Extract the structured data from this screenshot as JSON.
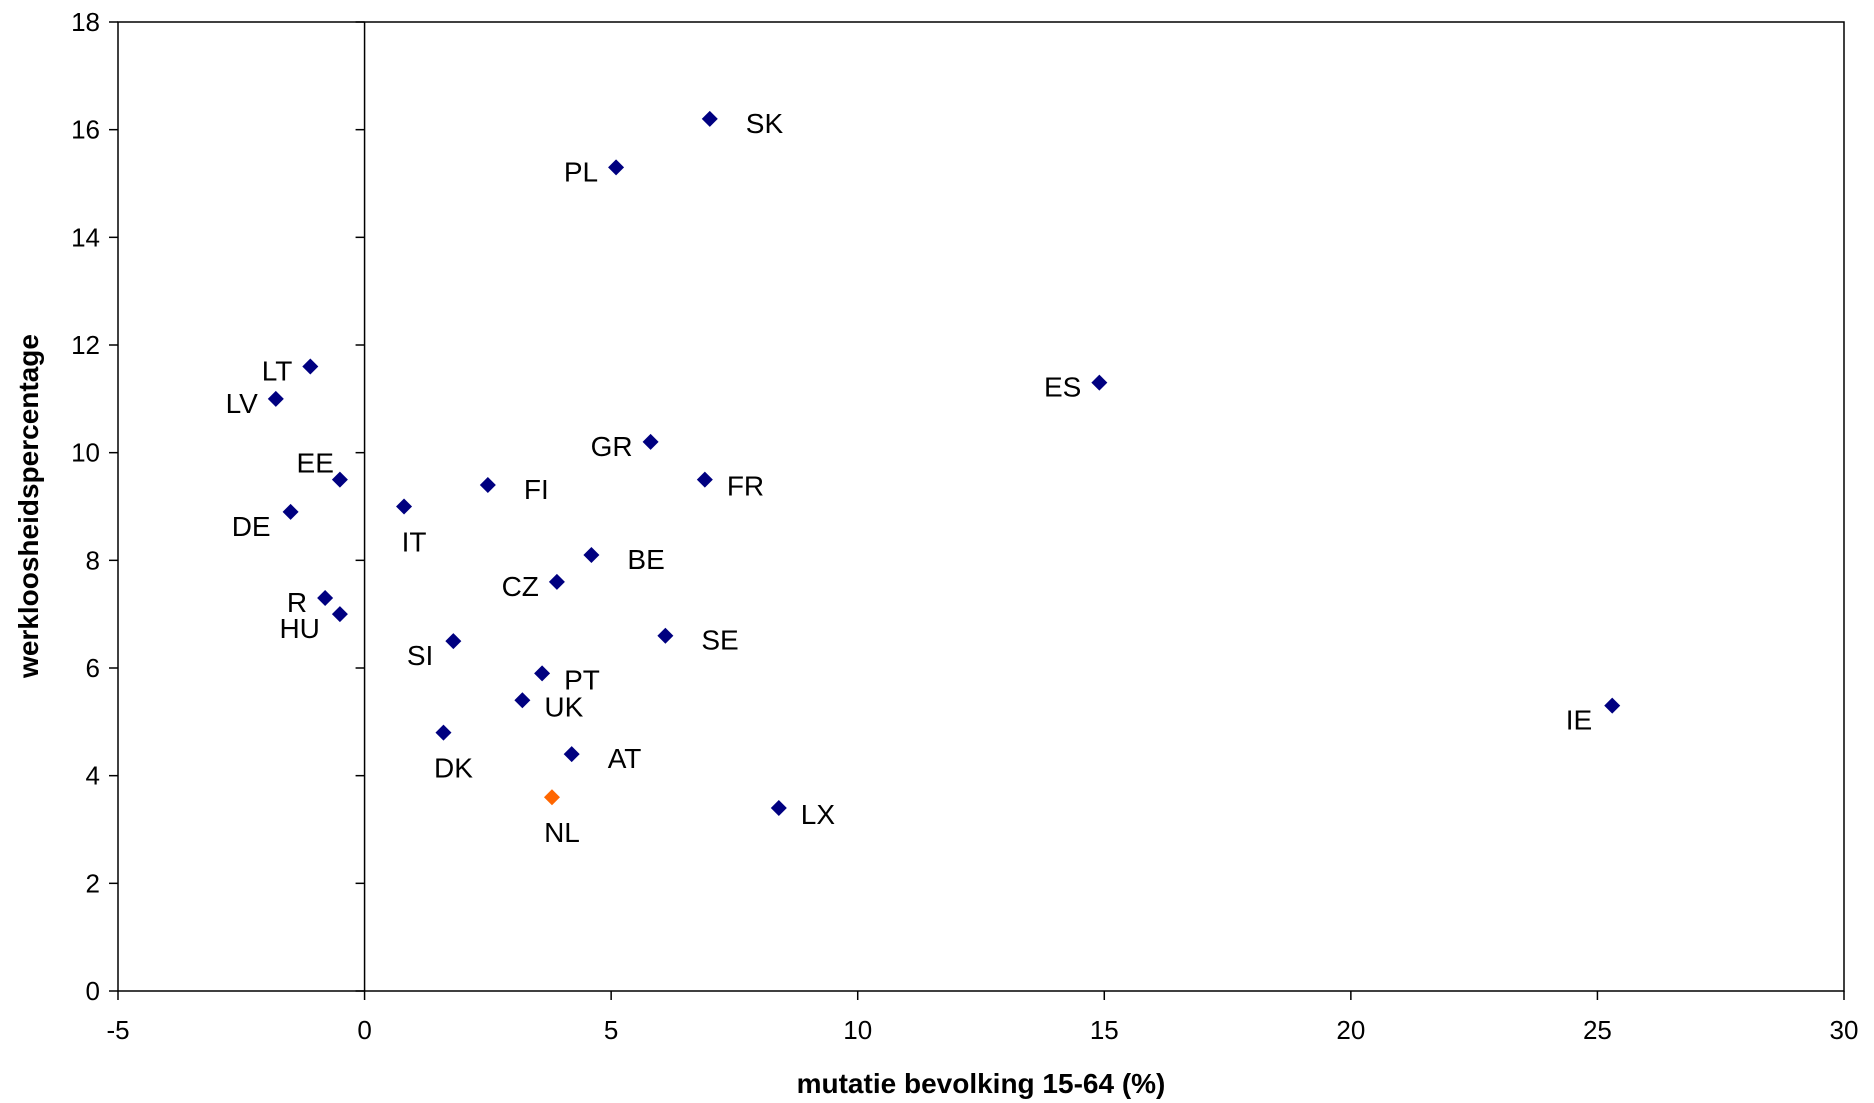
{
  "chart_data": {
    "type": "scatter",
    "title": "",
    "xlabel": "mutatie bevolking 15-64 (%)",
    "ylabel": "werkloosheidspercentage",
    "xlim": [
      -5,
      30
    ],
    "ylim": [
      0,
      18
    ],
    "xticks": [
      -5,
      0,
      5,
      10,
      15,
      20,
      25,
      30
    ],
    "yticks": [
      0,
      2,
      4,
      6,
      8,
      10,
      12,
      14,
      16,
      18
    ],
    "grid": false,
    "legend": "none",
    "colors": {
      "default": "#000080",
      "highlight": "#ff6600"
    },
    "points": [
      {
        "label": "SK",
        "x": 7.0,
        "y": 16.2,
        "label_pos": "right"
      },
      {
        "label": "PL",
        "x": 5.1,
        "y": 15.3,
        "label_pos": "left"
      },
      {
        "label": "ES",
        "x": 14.9,
        "y": 11.3,
        "label_pos": "left"
      },
      {
        "label": "LT",
        "x": -1.1,
        "y": 11.6,
        "label_pos": "left"
      },
      {
        "label": "LV",
        "x": -1.8,
        "y": 11.0,
        "label_pos": "left"
      },
      {
        "label": "GR",
        "x": 5.8,
        "y": 10.2,
        "label_pos": "left"
      },
      {
        "label": "EE",
        "x": -0.5,
        "y": 9.5,
        "label_pos": "upper-left"
      },
      {
        "label": "FI",
        "x": 2.5,
        "y": 9.4,
        "label_pos": "right"
      },
      {
        "label": "FR",
        "x": 6.9,
        "y": 9.5,
        "label_pos": "lower-right"
      },
      {
        "label": "DE",
        "x": -1.5,
        "y": 8.9,
        "label_pos": "lower-left"
      },
      {
        "label": "IT",
        "x": 0.8,
        "y": 9.0,
        "label_pos": "below"
      },
      {
        "label": "BE",
        "x": 4.6,
        "y": 8.1,
        "label_pos": "right"
      },
      {
        "label": "CZ",
        "x": 3.9,
        "y": 7.6,
        "label_pos": "left"
      },
      {
        "label": "R",
        "x": -0.8,
        "y": 7.3,
        "label_pos": "left"
      },
      {
        "label": "HU",
        "x": -0.5,
        "y": 7.0,
        "label_pos": "lower-left"
      },
      {
        "label": "SE",
        "x": 6.1,
        "y": 6.6,
        "label_pos": "right"
      },
      {
        "label": "SI",
        "x": 1.8,
        "y": 6.5,
        "label_pos": "lower-left"
      },
      {
        "label": "PT",
        "x": 3.6,
        "y": 5.9,
        "label_pos": "lower-right"
      },
      {
        "label": "UK",
        "x": 3.2,
        "y": 5.4,
        "label_pos": "lower-right"
      },
      {
        "label": "IE",
        "x": 25.3,
        "y": 5.3,
        "label_pos": "lower-left"
      },
      {
        "label": "DK",
        "x": 1.6,
        "y": 4.8,
        "label_pos": "below"
      },
      {
        "label": "AT",
        "x": 4.2,
        "y": 4.4,
        "label_pos": "right"
      },
      {
        "label": "NL",
        "x": 3.8,
        "y": 3.6,
        "label_pos": "below",
        "highlight": true
      },
      {
        "label": "LX",
        "x": 8.4,
        "y": 3.4,
        "label_pos": "lower-right"
      }
    ]
  }
}
